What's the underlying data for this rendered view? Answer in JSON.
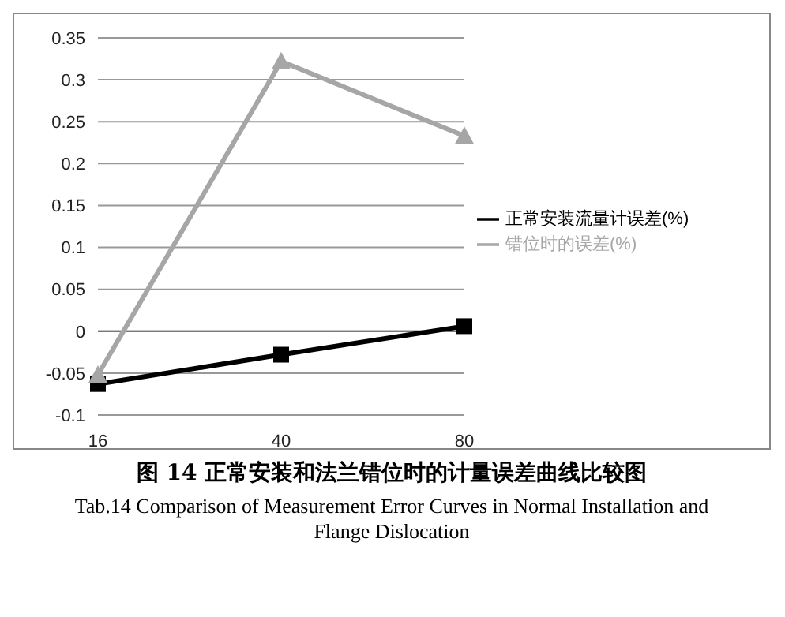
{
  "chart_data": {
    "type": "line",
    "title": "图 14 正常安装和法兰错位时的计量误差曲线比较图",
    "subtitle": "Tab.14 Comparison of Measurement Error Curves in Normal Installation and Flange Dislocation",
    "categories": [
      "16",
      "40",
      "80"
    ],
    "series": [
      {
        "name": "正常安装流量计误差(%)",
        "color": "#000000",
        "marker": "square",
        "values": [
          -0.063,
          -0.028,
          0.006
        ]
      },
      {
        "name": "错位时的误差(%)",
        "color": "#a6a6a6",
        "marker": "triangle",
        "values": [
          -0.052,
          0.322,
          0.233
        ]
      }
    ],
    "ylim": [
      -0.1,
      0.35
    ],
    "yticks": [
      -0.1,
      -0.05,
      0,
      0.05,
      0.1,
      0.15,
      0.2,
      0.25,
      0.3,
      0.35
    ],
    "grid": "y",
    "legend": "right"
  }
}
